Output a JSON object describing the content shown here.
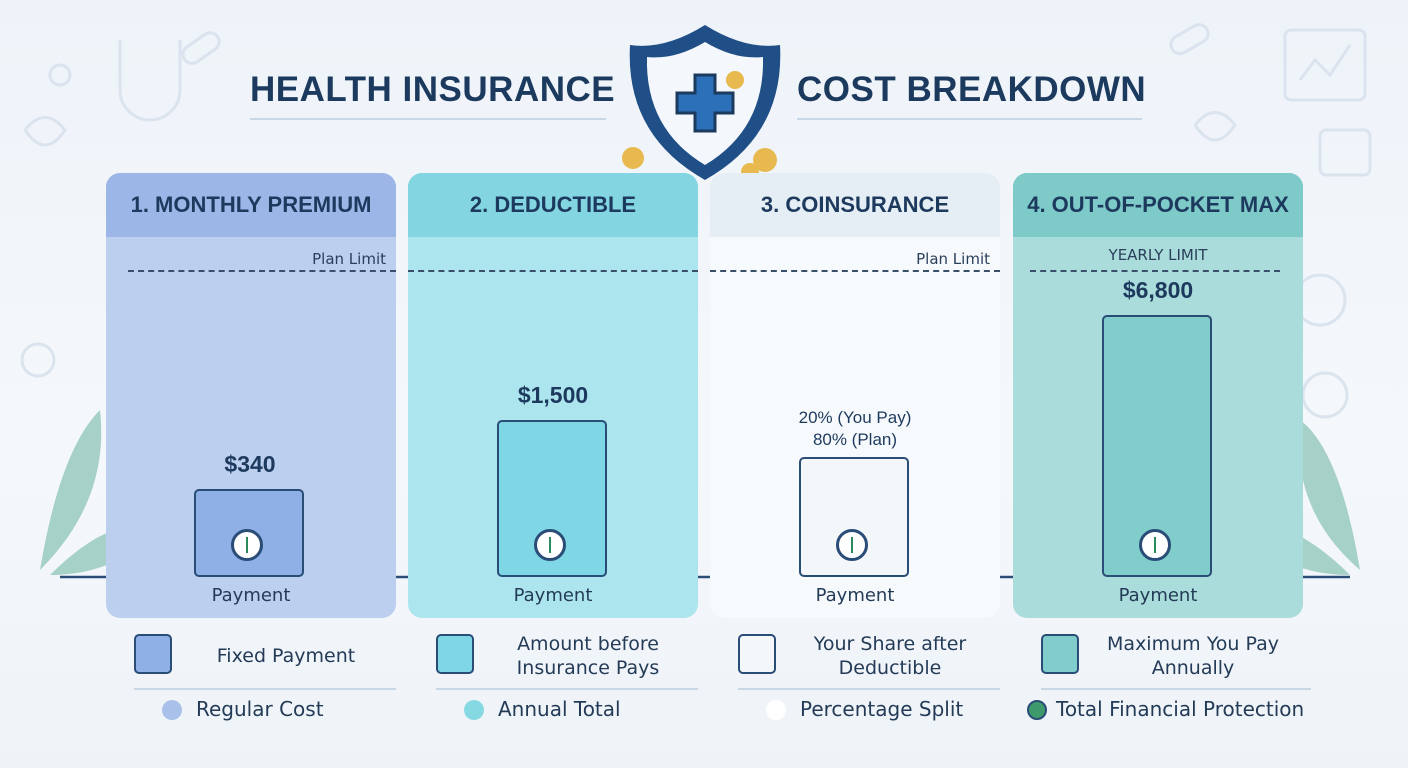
{
  "header": {
    "title_left": "HEALTH INSURANCE",
    "title_right": "COST BREAKDOWN"
  },
  "panels": [
    {
      "title": "1. MONTHLY PREMIUM",
      "limit_label": "Plan Limit",
      "value_lines": [
        "$340"
      ],
      "axis_label": "Payment",
      "description": [
        "Fixed Payment"
      ],
      "legend": "Regular Cost"
    },
    {
      "title": "2. DEDUCTIBLE",
      "limit_label": null,
      "value_lines": [
        "$1,500"
      ],
      "axis_label": "Payment",
      "description": [
        "Amount before",
        "Insurance Pays"
      ],
      "legend": "Annual Total"
    },
    {
      "title": "3. COINSURANCE",
      "limit_label": "Plan Limit",
      "value_lines": [
        "20% (You Pay)",
        "80% (Plan)"
      ],
      "axis_label": "Payment",
      "description": [
        "Your Share after",
        "Deductible"
      ],
      "legend": "Percentage Split"
    },
    {
      "title": "4. OUT-OF-POCKET MAX",
      "limit_label": "YEARLY LIMIT",
      "value_lines": [
        "$6,800"
      ],
      "axis_label": "Payment",
      "description": [
        "Maximum You Pay",
        "Annually"
      ],
      "legend": "Total Financial Protection"
    }
  ]
}
